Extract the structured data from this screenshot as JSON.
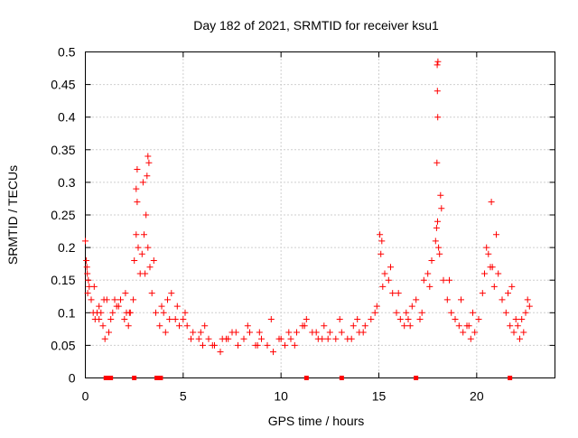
{
  "chart_data": {
    "type": "scatter",
    "title": "Day 182 of 2021, SRMTID for receiver ksu1",
    "xlabel": "GPS time / hours",
    "ylabel": "SRMTID / TECUs",
    "xlim": [
      0,
      24
    ],
    "ylim": [
      0,
      0.5
    ],
    "xticks": [
      0,
      5,
      10,
      15,
      20
    ],
    "xtick_labels": [
      "0",
      "5",
      "10",
      "15",
      "20"
    ],
    "yticks": [
      0,
      0.05,
      0.1,
      0.15,
      0.2,
      0.25,
      0.3,
      0.35,
      0.4,
      0.45,
      0.5
    ],
    "ytick_labels": [
      "0",
      "0.05",
      "0.1",
      "0.15",
      "0.2",
      "0.25",
      "0.3",
      "0.35",
      "0.4",
      "0.45",
      "0.5"
    ],
    "grid": true,
    "marker": "+",
    "color": "#ff0000",
    "series": [
      {
        "name": "SRMTID",
        "x": [
          0.0,
          0.05,
          0.1,
          0.15,
          0.2,
          0.3,
          0.4,
          0.5,
          0.6,
          0.7,
          0.8,
          0.9,
          1.0,
          1.2,
          1.4,
          1.5,
          1.6,
          1.8,
          2.0,
          2.1,
          2.2,
          2.3,
          2.5,
          2.6,
          2.7,
          2.8,
          2.9,
          3.0,
          3.1,
          3.2,
          3.3,
          3.4,
          3.6,
          3.8,
          4.0,
          4.2,
          4.4,
          4.6,
          4.8,
          5.0,
          5.2,
          5.5,
          5.8,
          6.0,
          6.3,
          6.6,
          6.9,
          7.2,
          7.5,
          7.8,
          8.1,
          8.4,
          8.7,
          9.0,
          9.3,
          9.6,
          9.9,
          10.2,
          10.5,
          10.8,
          11.1,
          11.3,
          11.6,
          11.9,
          12.2,
          12.5,
          12.8,
          13.1,
          13.4,
          13.7,
          14.0,
          14.3,
          14.6,
          14.9,
          15.1,
          15.3,
          15.5,
          15.7,
          15.9,
          16.1,
          16.3,
          16.5,
          16.7,
          16.9,
          17.1,
          17.3,
          17.5,
          17.7,
          17.9,
          18.0,
          18.1,
          18.3,
          18.5,
          18.7,
          18.9,
          19.1,
          19.3,
          19.5,
          19.7,
          19.9,
          20.1,
          20.3,
          20.5,
          20.7,
          20.9,
          21.1,
          21.3,
          21.5,
          21.7,
          21.9,
          22.1,
          22.3,
          22.5,
          22.7,
          0.08,
          0.12,
          0.45,
          0.7,
          0.95,
          1.3,
          1.7,
          2.05,
          2.45,
          2.65,
          2.95,
          3.05,
          3.25,
          3.5,
          3.9,
          4.3,
          4.7,
          5.1,
          5.4,
          5.9,
          6.5,
          7.0,
          7.7,
          8.3,
          8.9,
          9.5,
          10.0,
          10.7,
          11.2,
          11.8,
          12.4,
          13.0,
          13.6,
          14.2,
          14.8,
          15.2,
          15.6,
          16.0,
          16.6,
          17.2,
          17.6,
          17.95,
          18.05,
          18.2,
          18.6,
          19.2,
          19.8,
          20.4,
          20.6,
          20.8,
          21.0,
          21.6,
          22.0,
          22.4,
          22.6,
          17.98,
          18.02,
          17.99,
          18.01,
          17.97,
          3.2,
          3.15,
          2.65,
          2.6,
          20.75,
          15.05,
          15.15,
          18.15,
          1.1,
          2.25,
          4.1,
          6.1,
          7.3,
          8.8,
          10.4,
          12.1,
          13.9,
          16.4,
          19.6,
          21.8,
          22.2
        ],
        "y": [
          0.21,
          0.18,
          0.16,
          0.15,
          0.14,
          0.12,
          0.1,
          0.09,
          0.1,
          0.11,
          0.1,
          0.08,
          0.06,
          0.07,
          0.1,
          0.12,
          0.11,
          0.12,
          0.09,
          0.1,
          0.08,
          0.1,
          0.18,
          0.22,
          0.2,
          0.16,
          0.19,
          0.22,
          0.25,
          0.2,
          0.17,
          0.13,
          0.1,
          0.08,
          0.1,
          0.12,
          0.13,
          0.09,
          0.08,
          0.09,
          0.08,
          0.07,
          0.06,
          0.05,
          0.06,
          0.05,
          0.04,
          0.06,
          0.07,
          0.05,
          0.06,
          0.07,
          0.05,
          0.06,
          0.05,
          0.04,
          0.06,
          0.05,
          0.06,
          0.07,
          0.08,
          0.09,
          0.07,
          0.06,
          0.08,
          0.07,
          0.06,
          0.07,
          0.06,
          0.08,
          0.07,
          0.08,
          0.09,
          0.11,
          0.19,
          0.16,
          0.15,
          0.13,
          0.1,
          0.09,
          0.08,
          0.09,
          0.11,
          0.12,
          0.09,
          0.15,
          0.16,
          0.18,
          0.21,
          0.24,
          0.19,
          0.15,
          0.12,
          0.1,
          0.09,
          0.08,
          0.07,
          0.08,
          0.06,
          0.07,
          0.09,
          0.13,
          0.2,
          0.17,
          0.14,
          0.16,
          0.12,
          0.1,
          0.08,
          0.07,
          0.08,
          0.09,
          0.1,
          0.11,
          0.17,
          0.13,
          0.14,
          0.09,
          0.12,
          0.09,
          0.11,
          0.13,
          0.12,
          0.27,
          0.3,
          0.16,
          0.33,
          0.18,
          0.11,
          0.09,
          0.11,
          0.1,
          0.06,
          0.07,
          0.05,
          0.06,
          0.07,
          0.08,
          0.07,
          0.09,
          0.06,
          0.05,
          0.08,
          0.07,
          0.06,
          0.09,
          0.06,
          0.07,
          0.1,
          0.14,
          0.17,
          0.13,
          0.08,
          0.1,
          0.14,
          0.23,
          0.2,
          0.26,
          0.15,
          0.12,
          0.1,
          0.16,
          0.19,
          0.17,
          0.22,
          0.13,
          0.09,
          0.07,
          0.12,
          0.48,
          0.485,
          0.44,
          0.4,
          0.33,
          0.34,
          0.31,
          0.32,
          0.29,
          0.27,
          0.22,
          0.21,
          0.28,
          0.12,
          0.1,
          0.07,
          0.08,
          0.06,
          0.05,
          0.07,
          0.06,
          0.09,
          0.1,
          0.08,
          0.14,
          0.06
        ]
      }
    ],
    "data_gaps_at_zero": [
      1.05,
      1.2,
      1.3,
      2.5,
      3.65,
      3.85,
      11.3,
      13.1,
      16.9,
      21.7
    ]
  }
}
